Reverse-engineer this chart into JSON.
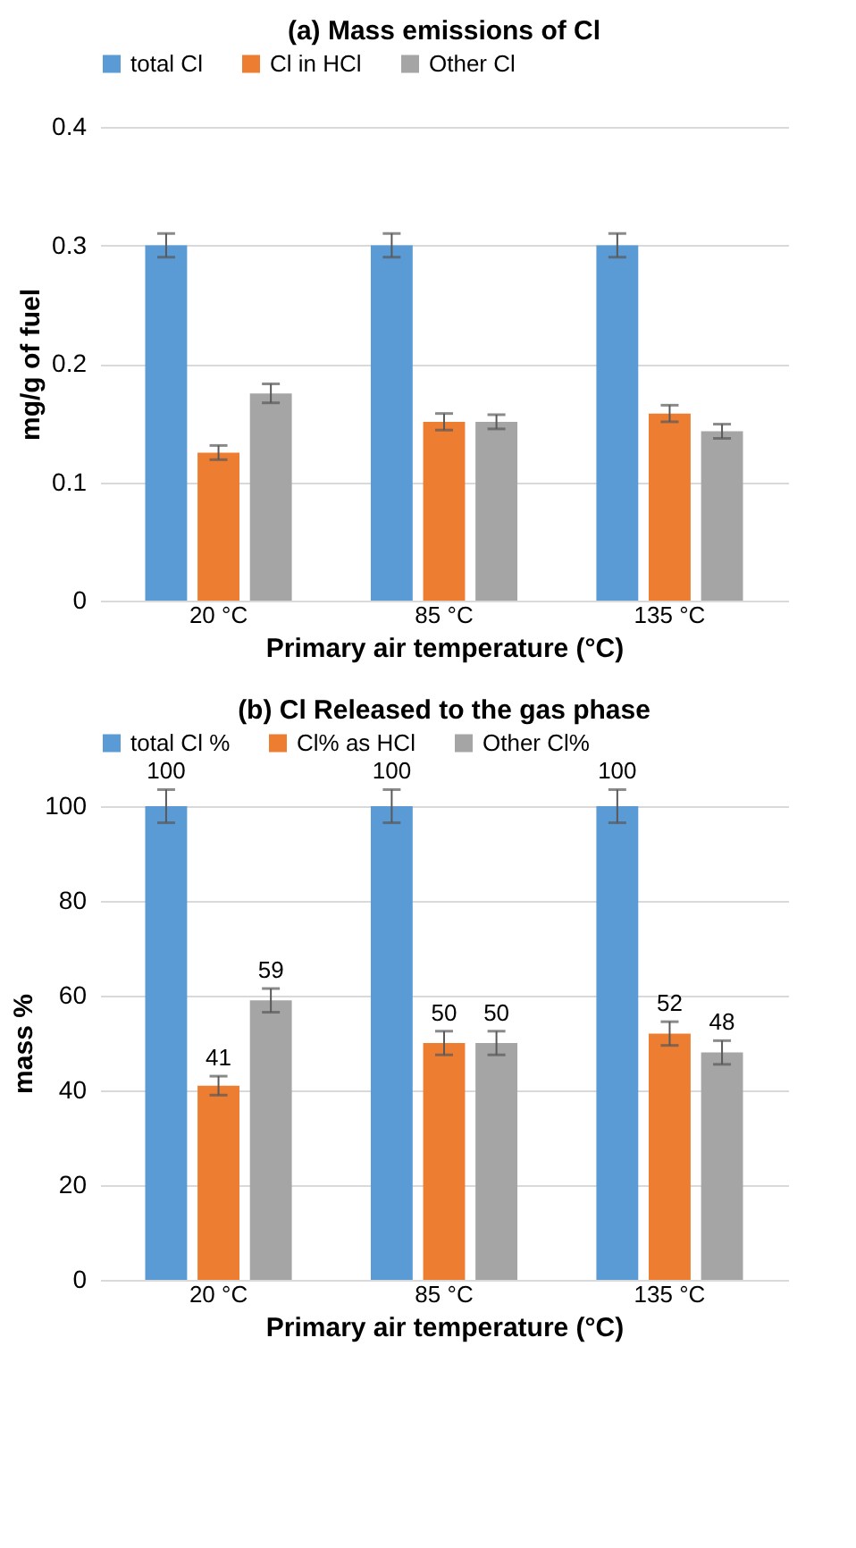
{
  "chart_data": [
    {
      "type": "bar",
      "title": "(a) Mass emissions of Cl",
      "xlabel": "Primary air temperature (°C)",
      "ylabel": "mg/g of fuel",
      "categories": [
        "20 °C",
        "85 °C",
        "135 °C"
      ],
      "ylim": [
        0,
        0.4
      ],
      "yticks": [
        0,
        0.1,
        0.2,
        0.3,
        0.4
      ],
      "grid": "y",
      "legend": "top",
      "series": [
        {
          "name": "total Cl",
          "color": "#5b9bd5",
          "values": [
            0.3,
            0.3,
            0.3
          ],
          "errors": [
            0.01,
            0.01,
            0.01
          ]
        },
        {
          "name": "Cl in HCl",
          "color": "#ed7d31",
          "values": [
            0.125,
            0.151,
            0.158
          ],
          "errors": [
            0.006,
            0.007,
            0.007
          ]
        },
        {
          "name": "Other Cl",
          "color": "#a5a5a5",
          "values": [
            0.175,
            0.151,
            0.143
          ],
          "errors": [
            0.008,
            0.006,
            0.006
          ]
        }
      ]
    },
    {
      "type": "bar",
      "title": "(b) Cl Released to the gas phase",
      "xlabel": "Primary air temperature (°C)",
      "ylabel": "mass %",
      "categories": [
        "20 °C",
        "85 °C",
        "135 °C"
      ],
      "ylim": [
        0,
        100
      ],
      "yticks": [
        0,
        20,
        40,
        60,
        80,
        100
      ],
      "grid": "y",
      "legend": "top",
      "data_labels": true,
      "series": [
        {
          "name": "total Cl %",
          "color": "#5b9bd5",
          "values": [
            100,
            100,
            100
          ],
          "errors": [
            3.5,
            3.5,
            3.5
          ]
        },
        {
          "name": "Cl% as HCl",
          "color": "#ed7d31",
          "values": [
            41,
            50,
            52
          ],
          "errors": [
            2,
            2.5,
            2.5
          ]
        },
        {
          "name": "Other Cl%",
          "color": "#a5a5a5",
          "values": [
            59,
            50,
            48
          ],
          "errors": [
            2.5,
            2.5,
            2.5
          ]
        }
      ]
    }
  ]
}
